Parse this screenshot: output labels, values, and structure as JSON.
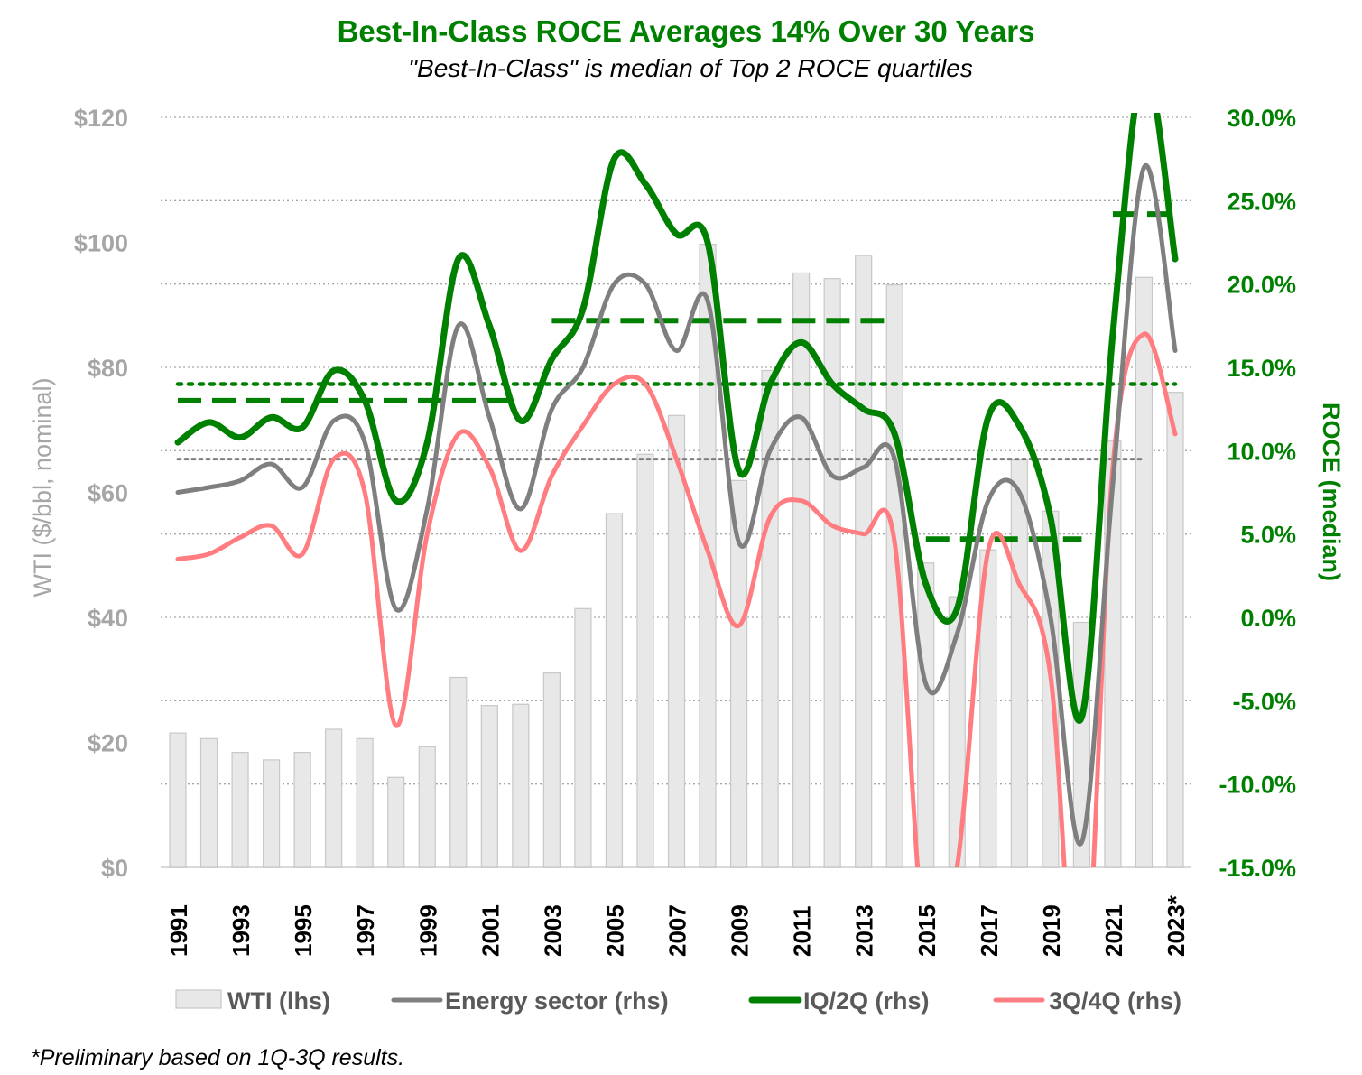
{
  "chart_data": {
    "type": "bar+line",
    "title": "Best-In-Class ROCE Averages 14% Over 30 Years",
    "subtitle": "\"Best-In-Class\" is median of Top 2 ROCE quartiles",
    "ylabel_left": "WTI ($/bbl, nominal)",
    "ylabel_right": "ROCE (median)",
    "ylim_left": [
      0,
      120
    ],
    "ylim_right": [
      -15,
      30
    ],
    "left_ticks": [
      "$0",
      "$20",
      "$40",
      "$60",
      "$80",
      "$100",
      "$120"
    ],
    "right_ticks": [
      "-15.0%",
      "-10.0%",
      "-5.0%",
      "0.0%",
      "5.0%",
      "10.0%",
      "15.0%",
      "20.0%",
      "25.0%",
      "30.0%"
    ],
    "years": [
      1991,
      1992,
      1993,
      1994,
      1995,
      1996,
      1997,
      1998,
      1999,
      2000,
      2001,
      2002,
      2003,
      2004,
      2005,
      2006,
      2007,
      2008,
      2009,
      2010,
      2011,
      2012,
      2013,
      2014,
      2015,
      2016,
      2017,
      2018,
      2019,
      2020,
      2021,
      2022,
      2023
    ],
    "x_tick_labels": [
      "1991",
      "1993",
      "1995",
      "1997",
      "1999",
      "2001",
      "2003",
      "2005",
      "2007",
      "2009",
      "2011",
      "2013",
      "2015",
      "2017",
      "2019",
      "2021",
      "2023*"
    ],
    "wti": [
      21.5,
      20.6,
      18.4,
      17.2,
      18.4,
      22.1,
      20.6,
      14.4,
      19.3,
      30.4,
      25.9,
      26.1,
      31.1,
      41.4,
      56.6,
      66.1,
      72.3,
      99.7,
      61.9,
      79.5,
      95.1,
      94.2,
      97.9,
      93.2,
      48.7,
      43.3,
      50.8,
      65.2,
      57.0,
      39.2,
      68.2,
      94.4,
      76.0
    ],
    "series": [
      {
        "name": "Energy sector (rhs)",
        "color": "#7f7f7f",
        "values": [
          7.5,
          7.8,
          8.2,
          9.2,
          7.8,
          11.8,
          10.5,
          0.5,
          6.5,
          17.5,
          12.0,
          6.5,
          12.5,
          15.0,
          20.0,
          20.0,
          16.0,
          19.0,
          4.5,
          10.0,
          12.0,
          8.5,
          9.0,
          9.5,
          -4.0,
          -1.0,
          7.0,
          7.5,
          0.0,
          -13.5,
          8.0,
          27.0,
          16.0
        ]
      },
      {
        "name": "IQ/2Q (rhs)",
        "color": "#008000",
        "values": [
          10.5,
          11.7,
          10.8,
          12.0,
          11.4,
          14.8,
          13.0,
          7.0,
          10.5,
          21.5,
          17.5,
          11.8,
          15.5,
          18.5,
          27.5,
          26.0,
          23.0,
          22.5,
          8.8,
          14.0,
          16.5,
          14.0,
          12.5,
          11.0,
          2.0,
          0.5,
          12.0,
          11.5,
          6.0,
          -6.0,
          17.0,
          33.0,
          21.5
        ]
      },
      {
        "name": "3Q/4Q (rhs)",
        "color": "#ff7c80",
        "values": [
          3.5,
          3.8,
          4.8,
          5.5,
          3.8,
          9.5,
          7.5,
          -6.5,
          5.0,
          11.0,
          9.0,
          4.0,
          8.5,
          11.5,
          14.0,
          14.0,
          9.5,
          4.0,
          -0.5,
          6.0,
          7.0,
          5.5,
          5.0,
          4.5,
          -20.0,
          -15.0,
          4.0,
          2.0,
          -3.5,
          -25.0,
          9.0,
          17.0,
          11.0
        ]
      }
    ],
    "averages": [
      {
        "series": "IQ/2Q (rhs)",
        "style": "dotted",
        "value": 14.0,
        "from": 1991,
        "to": 2023
      },
      {
        "series": "Energy sector (rhs)",
        "style": "dotted",
        "value": 9.5,
        "from": 1991,
        "to": 2022
      },
      {
        "series": "IQ/2Q (rhs)",
        "style": "dashed",
        "value": 13.0,
        "from": 1991,
        "to": 2002
      },
      {
        "series": "IQ/2Q (rhs)",
        "style": "dashed",
        "value": 17.8,
        "from": 2003,
        "to": 2014
      },
      {
        "series": "IQ/2Q (rhs)",
        "style": "dashed",
        "value": 4.7,
        "from": 2015,
        "to": 2020
      },
      {
        "series": "IQ/2Q (rhs)",
        "style": "dashed",
        "value": 24.2,
        "from": 2021,
        "to": 2023
      }
    ],
    "legend": [
      {
        "label": "WTI (lhs)",
        "kind": "bar"
      },
      {
        "label": "Energy sector (rhs)",
        "kind": "line",
        "color": "#7f7f7f"
      },
      {
        "label": "IQ/2Q (rhs)",
        "kind": "line",
        "color": "#008000"
      },
      {
        "label": "3Q/4Q (rhs)",
        "kind": "line",
        "color": "#ff7c80"
      }
    ],
    "legend_position": "bottom",
    "grid": true,
    "colors": {
      "title": "#008000",
      "bars": "#e8e8e8",
      "bar_edge": "#c8c8c8",
      "grid": "#a6a6a6",
      "left_axis": "#a6a6a6",
      "right_axis": "#008000"
    }
  },
  "footnote": "*Preliminary based on 1Q-3Q results."
}
